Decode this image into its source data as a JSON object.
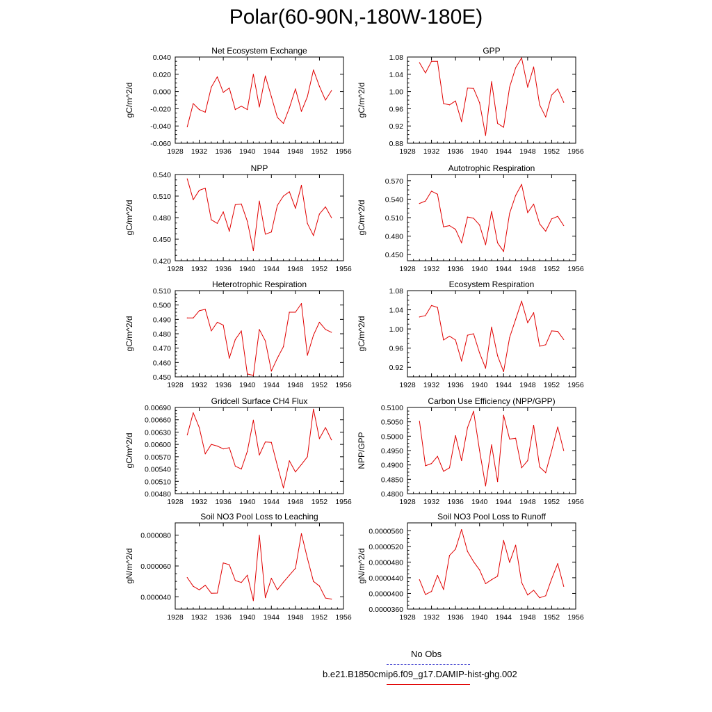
{
  "page_title": "Polar(60-90N,-180W-180E)",
  "legend": {
    "obs_label": "No Obs",
    "obs_color": "#3333cc",
    "model_label": "b.e21.B1850cmip6.f09_g17.DAMIP-hist-ghg.002",
    "model_color": "#e00000"
  },
  "chart_data": [
    {
      "type": "line",
      "title": "Net Ecosystem Exchange",
      "ylabel": "gC/m^2/d",
      "xlim": [
        1928,
        1956
      ],
      "xticks": [
        1928,
        1932,
        1936,
        1940,
        1944,
        1948,
        1952,
        1956
      ],
      "ylim": [
        -0.06,
        0.04
      ],
      "yticks": [
        -0.06,
        -0.04,
        -0.02,
        0.0,
        0.02,
        0.04
      ],
      "ytick_labels": [
        "-0.060",
        "-0.040",
        "-0.020",
        "0.000",
        "0.020",
        "0.040"
      ],
      "x": [
        1930,
        1931,
        1932,
        1933,
        1934,
        1935,
        1936,
        1937,
        1938,
        1939,
        1940,
        1941,
        1942,
        1943,
        1944,
        1945,
        1946,
        1947,
        1948,
        1949,
        1950,
        1951,
        1952,
        1953,
        1954
      ],
      "series": [
        {
          "values": [
            -0.041,
            -0.014,
            -0.021,
            -0.024,
            0.005,
            0.017,
            -0.001,
            0.004,
            -0.021,
            -0.017,
            -0.021,
            0.02,
            -0.018,
            0.018,
            -0.006,
            -0.03,
            -0.037,
            -0.019,
            0.003,
            -0.023,
            -0.006,
            0.025,
            0.006,
            -0.01,
            0.001
          ]
        }
      ]
    },
    {
      "type": "line",
      "title": "GPP",
      "ylabel": "gC/m^2/d",
      "xlim": [
        1928,
        1956
      ],
      "xticks": [
        1928,
        1932,
        1936,
        1940,
        1944,
        1948,
        1952,
        1956
      ],
      "ylim": [
        0.88,
        1.08
      ],
      "yticks": [
        0.88,
        0.92,
        0.96,
        1.0,
        1.04,
        1.08
      ],
      "ytick_labels": [
        "0.88",
        "0.92",
        "0.96",
        "1.00",
        "1.04",
        "1.08"
      ],
      "x": [
        1930,
        1931,
        1932,
        1933,
        1934,
        1935,
        1936,
        1937,
        1938,
        1939,
        1940,
        1941,
        1942,
        1943,
        1944,
        1945,
        1946,
        1947,
        1948,
        1949,
        1950,
        1951,
        1952,
        1953,
        1954
      ],
      "series": [
        {
          "values": [
            1.067,
            1.043,
            1.07,
            1.07,
            0.972,
            0.969,
            0.978,
            0.93,
            1.008,
            1.007,
            0.974,
            0.898,
            1.023,
            0.926,
            0.917,
            1.01,
            1.055,
            1.078,
            1.01,
            1.057,
            0.969,
            0.941,
            0.992,
            1.006,
            0.975
          ]
        }
      ]
    },
    {
      "type": "line",
      "title": "NPP",
      "ylabel": "gC/m^2/d",
      "xlim": [
        1928,
        1956
      ],
      "xticks": [
        1928,
        1932,
        1936,
        1940,
        1944,
        1948,
        1952,
        1956
      ],
      "ylim": [
        0.42,
        0.54
      ],
      "yticks": [
        0.42,
        0.45,
        0.48,
        0.51,
        0.54
      ],
      "ytick_labels": [
        "0.420",
        "0.450",
        "0.480",
        "0.510",
        "0.540"
      ],
      "x": [
        1930,
        1931,
        1932,
        1933,
        1934,
        1935,
        1936,
        1937,
        1938,
        1939,
        1940,
        1941,
        1942,
        1943,
        1944,
        1945,
        1946,
        1947,
        1948,
        1949,
        1950,
        1951,
        1952,
        1953,
        1954
      ],
      "series": [
        {
          "values": [
            0.534,
            0.505,
            0.518,
            0.521,
            0.477,
            0.472,
            0.488,
            0.461,
            0.498,
            0.499,
            0.475,
            0.434,
            0.503,
            0.457,
            0.46,
            0.497,
            0.51,
            0.516,
            0.493,
            0.525,
            0.472,
            0.455,
            0.485,
            0.495,
            0.48
          ]
        }
      ]
    },
    {
      "type": "line",
      "title": "Autotrophic Respiration",
      "ylabel": "gC/m^2/d",
      "xlim": [
        1928,
        1956
      ],
      "xticks": [
        1928,
        1932,
        1936,
        1940,
        1944,
        1948,
        1952,
        1956
      ],
      "ylim": [
        0.44,
        0.58
      ],
      "yticks": [
        0.45,
        0.48,
        0.51,
        0.54,
        0.57
      ],
      "ytick_labels": [
        "0.450",
        "0.480",
        "0.510",
        "0.540",
        "0.570"
      ],
      "x": [
        1930,
        1931,
        1932,
        1933,
        1934,
        1935,
        1936,
        1937,
        1938,
        1939,
        1940,
        1941,
        1942,
        1943,
        1944,
        1945,
        1946,
        1947,
        1948,
        1949,
        1950,
        1951,
        1952,
        1953,
        1954
      ],
      "series": [
        {
          "values": [
            0.533,
            0.537,
            0.553,
            0.548,
            0.495,
            0.497,
            0.491,
            0.469,
            0.511,
            0.509,
            0.498,
            0.466,
            0.52,
            0.469,
            0.455,
            0.517,
            0.546,
            0.564,
            0.518,
            0.532,
            0.5,
            0.488,
            0.508,
            0.512,
            0.497
          ]
        }
      ]
    },
    {
      "type": "line",
      "title": "Heterotrophic Respiration",
      "ylabel": "gC/m^2/d",
      "xlim": [
        1928,
        1956
      ],
      "xticks": [
        1928,
        1932,
        1936,
        1940,
        1944,
        1948,
        1952,
        1956
      ],
      "ylim": [
        0.45,
        0.51
      ],
      "yticks": [
        0.45,
        0.46,
        0.47,
        0.48,
        0.49,
        0.5,
        0.51
      ],
      "ytick_labels": [
        "0.450",
        "0.460",
        "0.470",
        "0.480",
        "0.490",
        "0.500",
        "0.510"
      ],
      "x": [
        1930,
        1931,
        1932,
        1933,
        1934,
        1935,
        1936,
        1937,
        1938,
        1939,
        1940,
        1941,
        1942,
        1943,
        1944,
        1945,
        1946,
        1947,
        1948,
        1949,
        1950,
        1951,
        1952,
        1953,
        1954
      ],
      "series": [
        {
          "values": [
            0.491,
            0.491,
            0.496,
            0.497,
            0.482,
            0.488,
            0.486,
            0.463,
            0.476,
            0.482,
            0.452,
            0.451,
            0.483,
            0.475,
            0.454,
            0.463,
            0.471,
            0.495,
            0.495,
            0.501,
            0.465,
            0.479,
            0.488,
            0.483,
            0.481
          ]
        }
      ]
    },
    {
      "type": "line",
      "title": "Ecosystem Respiration",
      "ylabel": "gC/m^2/d",
      "xlim": [
        1928,
        1956
      ],
      "xticks": [
        1928,
        1932,
        1936,
        1940,
        1944,
        1948,
        1952,
        1956
      ],
      "ylim": [
        0.9,
        1.08
      ],
      "yticks": [
        0.92,
        0.96,
        1.0,
        1.04,
        1.08
      ],
      "ytick_labels": [
        "0.92",
        "0.96",
        "1.00",
        "1.04",
        "1.08"
      ],
      "x": [
        1930,
        1931,
        1932,
        1933,
        1934,
        1935,
        1936,
        1937,
        1938,
        1939,
        1940,
        1941,
        1942,
        1943,
        1944,
        1945,
        1946,
        1947,
        1948,
        1949,
        1950,
        1951,
        1952,
        1953,
        1954
      ],
      "series": [
        {
          "values": [
            1.025,
            1.028,
            1.049,
            1.045,
            0.977,
            0.985,
            0.977,
            0.933,
            0.987,
            0.99,
            0.95,
            0.918,
            1.004,
            0.944,
            0.911,
            0.982,
            1.02,
            1.058,
            1.013,
            1.034,
            0.964,
            0.967,
            0.996,
            0.995,
            0.978
          ]
        }
      ]
    },
    {
      "type": "line",
      "title": "Gridcell Surface CH4 Flux",
      "ylabel": "gC/m^2/d",
      "xlim": [
        1928,
        1956
      ],
      "xticks": [
        1928,
        1932,
        1936,
        1940,
        1944,
        1948,
        1952,
        1956
      ],
      "ylim": [
        0.0048,
        0.0069
      ],
      "yticks": [
        0.0048,
        0.0051,
        0.0054,
        0.0057,
        0.006,
        0.0063,
        0.0066,
        0.0069
      ],
      "ytick_labels": [
        "0.00480",
        "0.00510",
        "0.00540",
        "0.00570",
        "0.00600",
        "0.00630",
        "0.00660",
        "0.00690"
      ],
      "x": [
        1930,
        1931,
        1932,
        1933,
        1934,
        1935,
        1936,
        1937,
        1938,
        1939,
        1940,
        1941,
        1942,
        1943,
        1944,
        1945,
        1946,
        1947,
        1948,
        1949,
        1950,
        1951,
        1952,
        1953,
        1954
      ],
      "series": [
        {
          "values": [
            0.00623,
            0.00677,
            0.00641,
            0.00577,
            0.006,
            0.00596,
            0.00589,
            0.00592,
            0.00547,
            0.0054,
            0.00583,
            0.00659,
            0.00574,
            0.00606,
            0.00605,
            0.00548,
            0.00494,
            0.0056,
            0.00533,
            0.00551,
            0.0057,
            0.00686,
            0.00614,
            0.00641,
            0.00611
          ]
        }
      ]
    },
    {
      "type": "line",
      "title": "Carbon Use Efficiency (NPP/GPP)",
      "ylabel": "NPP/GPP",
      "xlim": [
        1928,
        1956
      ],
      "xticks": [
        1928,
        1932,
        1936,
        1940,
        1944,
        1948,
        1952,
        1956
      ],
      "ylim": [
        0.48,
        0.51
      ],
      "yticks": [
        0.48,
        0.485,
        0.49,
        0.495,
        0.5,
        0.505,
        0.51
      ],
      "ytick_labels": [
        "0.4800",
        "0.4850",
        "0.4900",
        "0.4950",
        "0.5000",
        "0.5050",
        "0.5100"
      ],
      "x": [
        1930,
        1931,
        1932,
        1933,
        1934,
        1935,
        1936,
        1937,
        1938,
        1939,
        1940,
        1941,
        1942,
        1943,
        1944,
        1945,
        1946,
        1947,
        1948,
        1949,
        1950,
        1951,
        1952,
        1953,
        1954
      ],
      "series": [
        {
          "values": [
            0.5052,
            0.4897,
            0.4905,
            0.493,
            0.4878,
            0.489,
            0.5002,
            0.4915,
            0.503,
            0.5087,
            0.495,
            0.4827,
            0.497,
            0.4842,
            0.5073,
            0.499,
            0.4993,
            0.489,
            0.4915,
            0.5038,
            0.4893,
            0.4873,
            0.495,
            0.5032,
            0.495
          ]
        }
      ]
    },
    {
      "type": "line",
      "title": "Soil NO3 Pool Loss to Leaching",
      "ylabel": "gN/m^2/d",
      "xlim": [
        1928,
        1956
      ],
      "xticks": [
        1928,
        1932,
        1936,
        1940,
        1944,
        1948,
        1952,
        1956
      ],
      "ylim": [
        3.2e-05,
        8.8e-05
      ],
      "yticks": [
        4e-05,
        6e-05,
        8e-05
      ],
      "ytick_labels": [
        "0.000040",
        "0.000060",
        "0.000080"
      ],
      "x": [
        1930,
        1931,
        1932,
        1933,
        1934,
        1935,
        1936,
        1937,
        1938,
        1939,
        1940,
        1941,
        1942,
        1943,
        1944,
        1945,
        1946,
        1947,
        1948,
        1949,
        1950,
        1951,
        1952,
        1953,
        1954
      ],
      "series": [
        {
          "values": [
            5.25e-05,
            4.68e-05,
            4.45e-05,
            4.75e-05,
            4.23e-05,
            4.24e-05,
            6.2e-05,
            6.08e-05,
            5.05e-05,
            4.93e-05,
            5.4e-05,
            3.75e-05,
            8e-05,
            3.94e-05,
            5.2e-05,
            4.45e-05,
            4.95e-05,
            5.4e-05,
            5.85e-05,
            8.1e-05,
            6.5e-05,
            5e-05,
            4.7e-05,
            3.92e-05,
            3.85e-05
          ]
        }
      ]
    },
    {
      "type": "line",
      "title": "Soil NO3 Pool Loss to Runoff",
      "ylabel": "gN/m^2/d",
      "xlim": [
        1928,
        1956
      ],
      "xticks": [
        1928,
        1932,
        1936,
        1940,
        1944,
        1948,
        1952,
        1956
      ],
      "ylim": [
        3.6e-05,
        5.8e-05
      ],
      "yticks": [
        3.6e-05,
        4e-05,
        4.4e-05,
        4.8e-05,
        5.2e-05,
        5.6e-05
      ],
      "ytick_labels": [
        "0.0000360",
        "0.0000400",
        "0.0000440",
        "0.0000480",
        "0.0000520",
        "0.0000560"
      ],
      "x": [
        1930,
        1931,
        1932,
        1933,
        1934,
        1935,
        1936,
        1937,
        1938,
        1939,
        1940,
        1941,
        1942,
        1943,
        1944,
        1945,
        1946,
        1947,
        1948,
        1949,
        1950,
        1951,
        1952,
        1953,
        1954
      ],
      "series": [
        {
          "values": [
            4.35e-05,
            3.97e-05,
            4.05e-05,
            4.46e-05,
            4.1e-05,
            4.97e-05,
            5.13e-05,
            5.63e-05,
            5.07e-05,
            4.81e-05,
            4.6e-05,
            4.25e-05,
            4.35e-05,
            4.44e-05,
            5.35e-05,
            4.79e-05,
            5.23e-05,
            4.28e-05,
            3.96e-05,
            4.08e-05,
            3.89e-05,
            3.94e-05,
            4.37e-05,
            4.76e-05,
            4.18e-05
          ]
        }
      ]
    }
  ]
}
